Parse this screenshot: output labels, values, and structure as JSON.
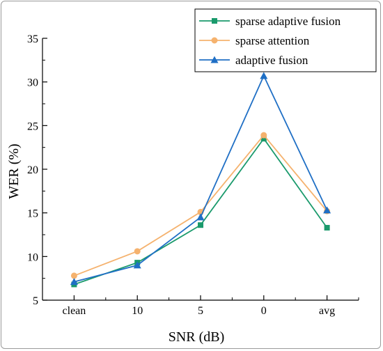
{
  "chart_data": {
    "type": "line",
    "title": "",
    "xlabel": "SNR (dB)",
    "ylabel": "WER (%)",
    "categories": [
      "clean",
      "10",
      "5",
      "0",
      "avg"
    ],
    "ylim": [
      5,
      35
    ],
    "yticks": [
      5,
      10,
      15,
      20,
      25,
      30,
      35
    ],
    "grid": false,
    "legend_position": "top-right",
    "series": [
      {
        "name": "sparse adaptive fusion",
        "marker": "square",
        "color": "#1a9a6c",
        "values": [
          6.8,
          9.3,
          13.6,
          23.5,
          13.3
        ]
      },
      {
        "name": "sparse attention",
        "marker": "circle",
        "color": "#f5b26e",
        "values": [
          7.8,
          10.6,
          15.1,
          23.9,
          15.2
        ]
      },
      {
        "name": "adaptive fusion",
        "marker": "triangle",
        "color": "#1f6fc5",
        "values": [
          7.1,
          9.0,
          14.5,
          30.7,
          15.3
        ]
      }
    ]
  }
}
